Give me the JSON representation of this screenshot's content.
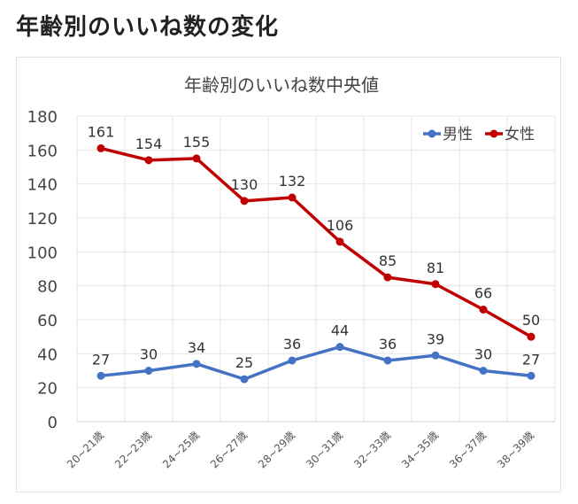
{
  "page": {
    "heading": "年齢別のいいね数の変化"
  },
  "chart_data": {
    "type": "line",
    "title": "年齢別のいいね数中央値",
    "categories": [
      "20~21歳",
      "22~23歳",
      "24~25歳",
      "26~27歳",
      "28~29歳",
      "30~31歳",
      "32~33歳",
      "34~35歳",
      "36~37歳",
      "38~39歳"
    ],
    "series": [
      {
        "name": "男性",
        "color": "#4472C4",
        "values": [
          27,
          30,
          34,
          25,
          36,
          44,
          36,
          39,
          30,
          27
        ]
      },
      {
        "name": "女性",
        "color": "#C00000",
        "values": [
          161,
          154,
          155,
          130,
          132,
          106,
          85,
          81,
          66,
          50
        ]
      }
    ],
    "ylim": [
      0,
      180
    ],
    "yticks": [
      0,
      20,
      40,
      60,
      80,
      100,
      120,
      140,
      160,
      180
    ],
    "grid": true,
    "legend": "top-right",
    "xlabel": "",
    "ylabel": ""
  }
}
